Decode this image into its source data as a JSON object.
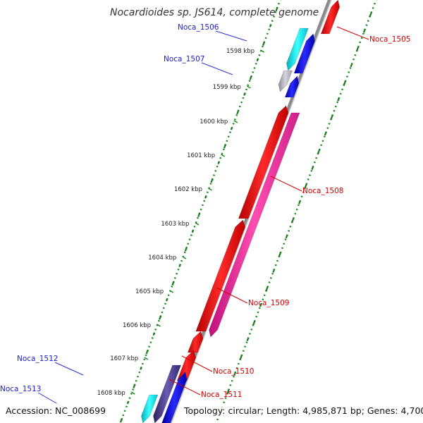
{
  "title": "Nocardioides sp. JS614, complete genome",
  "accession": "Accession: NC_008699",
  "topology": "Topology: circular; Length: 4,985,871 bp; Genes: 4,700",
  "ticks": [
    "1598 kbp",
    "1599 kbp",
    "1600 kbp",
    "1601 kbp",
    "1602 kbp",
    "1603 kbp",
    "1604 kbp",
    "1605 kbp",
    "1606 kbp",
    "1607 kbp",
    "1608 kbp"
  ],
  "genes_left": [
    "Noca_1506",
    "Noca_1507",
    "Noca_1512",
    "Noca_1513"
  ],
  "genes_right": [
    "Noca_1505",
    "Noca_1508",
    "Noca_1509",
    "Noca_1510",
    "Noca_1511"
  ],
  "colors": {
    "forward_gene": "#ff0000",
    "reverse_gene": "#0000e0",
    "pink_gene": "#ff2aa0",
    "cyan_gene": "#00e8f0",
    "grey_gene": "#b8b8c0",
    "purple_gene": "#4b3d8c",
    "backbone": "#8a8a8a",
    "dots": "#1a8a1a",
    "left_label": "#1c1ccf",
    "right_label": "#d40000"
  }
}
